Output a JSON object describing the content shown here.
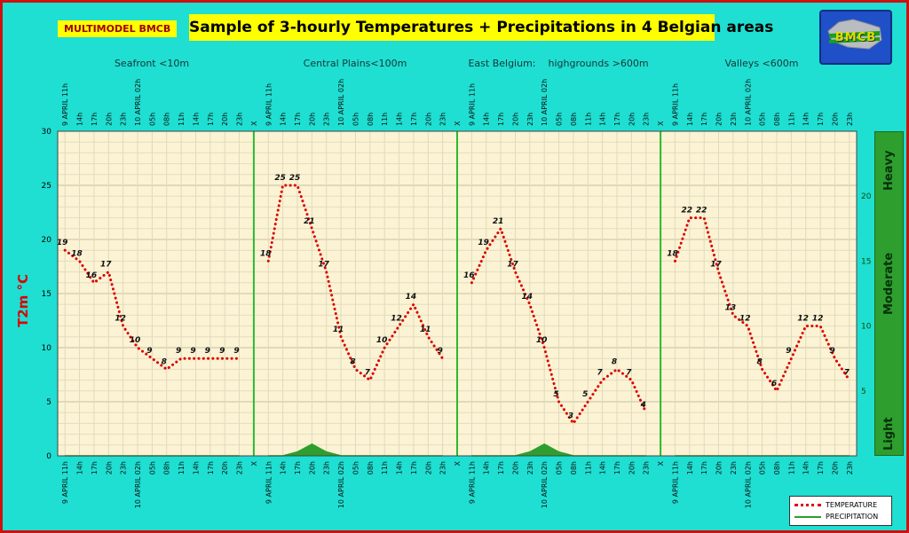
{
  "header": {
    "model_label": "MULTIMODEL BMCB",
    "title": "Sample of 3-hourly Temperatures + Precipitations in 4 Belgian areas",
    "logo_text": "BMCB"
  },
  "axes": {
    "left_label": "T2m °C",
    "left_ticks": [
      0,
      5,
      10,
      15,
      20,
      25,
      30
    ],
    "ylim": [
      0,
      30
    ],
    "right_ticks": [
      5,
      10,
      15,
      20
    ],
    "precip_ylim": [
      0,
      25
    ],
    "right_bands": [
      "Light",
      "Moderate",
      "Heavy"
    ]
  },
  "chart_data": {
    "type": "line",
    "title": "Sample of 3-hourly Temperatures + Precipitations in 4 Belgian areas",
    "categories": [
      "9 APRIL 11h",
      "14h",
      "17h",
      "20h",
      "23h",
      "10 APRIL 02h",
      "05h",
      "08h",
      "11h",
      "14h",
      "17h",
      "20h",
      "23h"
    ],
    "separator_label": "X",
    "ylabel": "T2m °C",
    "ylim": [
      0,
      30
    ],
    "precip_ylim": [
      0,
      25
    ],
    "grid": true,
    "temperature_color": "#dd0000",
    "precipitation_color": "#2e9e2e",
    "separator_color": "#2db82d",
    "panels": [
      {
        "title": "Seafront <10m",
        "temperature": [
          19,
          18,
          16,
          17,
          12,
          10,
          9,
          8,
          9,
          9,
          9,
          9,
          9
        ],
        "precipitation": [
          0,
          0,
          0,
          0,
          0,
          0,
          0,
          0,
          0,
          0,
          0,
          0,
          0
        ]
      },
      {
        "title": "Central Plains<100m",
        "temperature": [
          18,
          25,
          25,
          21,
          17,
          11,
          8,
          7,
          10,
          12,
          14,
          11,
          9
        ],
        "precipitation": [
          0,
          0,
          0.3,
          0.9,
          0.3,
          0,
          0,
          0,
          0,
          0,
          0,
          0,
          0
        ]
      },
      {
        "title": "East Belgium:    highgrounds >600m",
        "temperature": [
          16,
          19,
          21,
          17,
          14,
          10,
          5,
          3,
          5,
          7,
          8,
          7,
          4
        ],
        "precipitation": [
          0,
          0,
          0,
          0,
          0.3,
          0.9,
          0.3,
          0,
          0,
          0,
          0,
          0,
          0
        ]
      },
      {
        "title": "Valleys <600m",
        "temperature": [
          18,
          22,
          22,
          17,
          13,
          12,
          8,
          6,
          9,
          12,
          12,
          9,
          7
        ],
        "precipitation": [
          0,
          0,
          0,
          0,
          0,
          0,
          0,
          0,
          0,
          0,
          0,
          0,
          0
        ]
      }
    ]
  },
  "legend": {
    "temperature_label": "TEMPERATURE",
    "precipitation_label": "PRECIPITATION"
  }
}
